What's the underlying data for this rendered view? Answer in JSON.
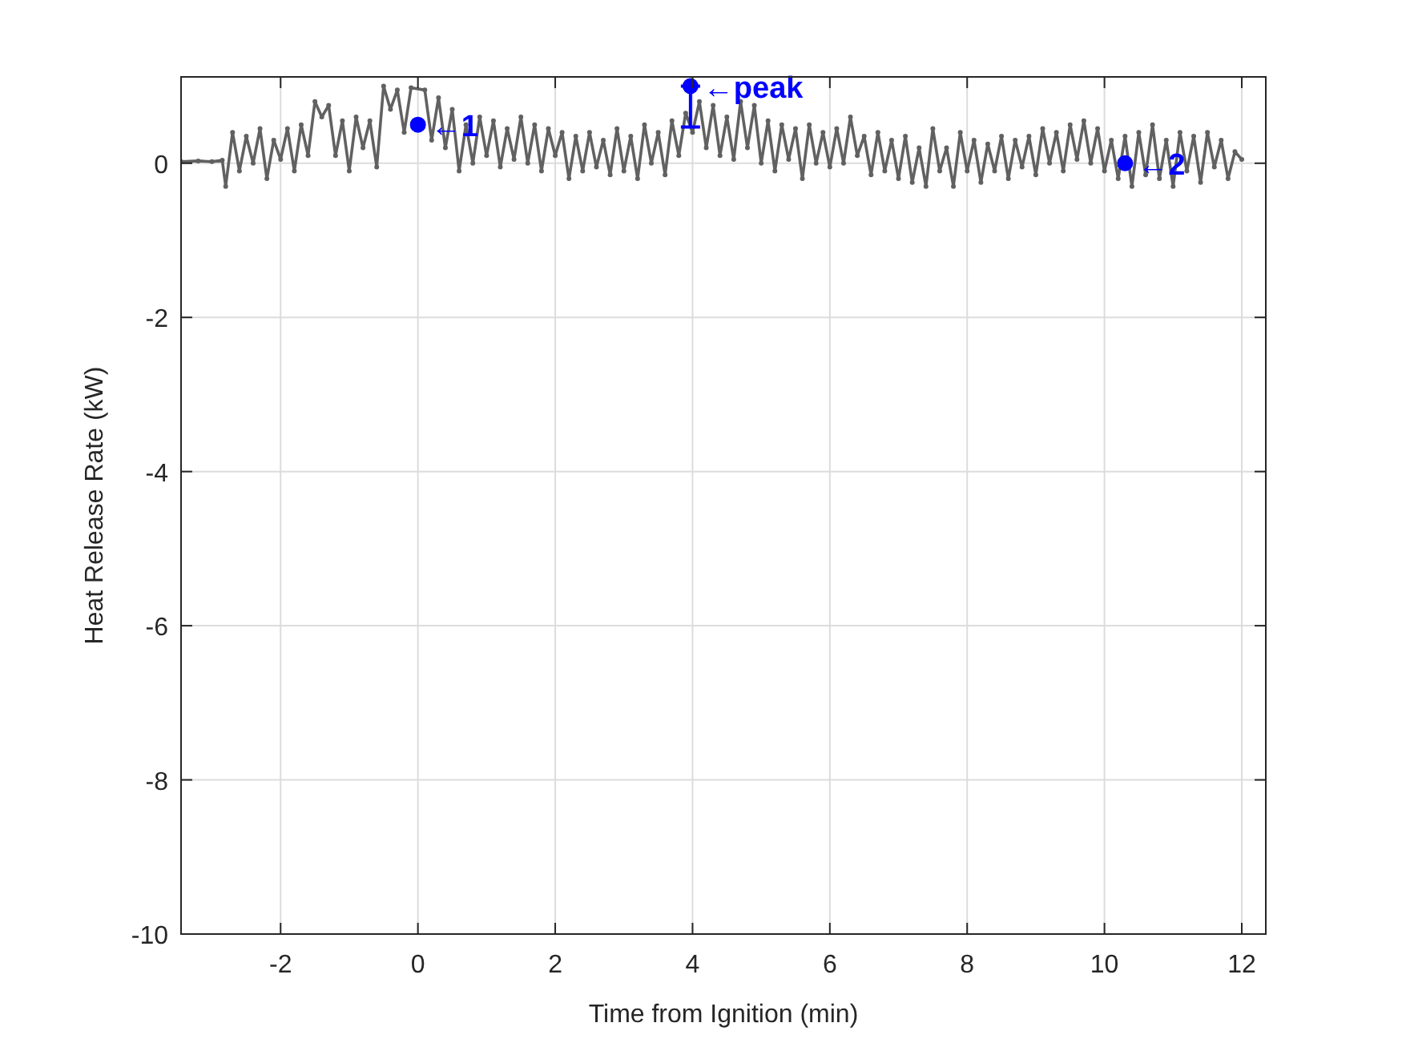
{
  "chart_data": {
    "type": "line",
    "xlabel": "Time from Ignition (min)",
    "ylabel": "Heat Release Rate (kW)",
    "xlim": [
      -3.45,
      12.35
    ],
    "ylim": [
      -10,
      1.12
    ],
    "xticks": [
      -2,
      0,
      2,
      4,
      6,
      8,
      10,
      12
    ],
    "yticks": [
      -10,
      -8,
      -6,
      -4,
      -2,
      0
    ],
    "grid": true,
    "marker": "circle",
    "line_style": "solid",
    "series": [
      {
        "color": "#616161",
        "x": [
          -3.45,
          -3.2,
          -3.0,
          -2.85,
          -2.8,
          -2.7,
          -2.6,
          -2.5,
          -2.4,
          -2.3,
          -2.2,
          -2.1,
          -2.0,
          -1.9,
          -1.8,
          -1.7,
          -1.6,
          -1.5,
          -1.4,
          -1.3,
          -1.2,
          -1.1,
          -1.0,
          -0.9,
          -0.8,
          -0.7,
          -0.6,
          -0.5,
          -0.4,
          -0.3,
          -0.2,
          -0.1,
          0.0,
          0.1,
          0.2,
          0.3,
          0.4,
          0.5,
          0.6,
          0.7,
          0.8,
          0.9,
          1.0,
          1.1,
          1.2,
          1.3,
          1.4,
          1.5,
          1.6,
          1.7,
          1.8,
          1.9,
          2.0,
          2.1,
          2.2,
          2.3,
          2.4,
          2.5,
          2.6,
          2.7,
          2.8,
          2.9,
          3.0,
          3.1,
          3.2,
          3.3,
          3.4,
          3.5,
          3.6,
          3.7,
          3.8,
          3.9,
          4.0,
          4.1,
          4.2,
          4.3,
          4.4,
          4.5,
          4.6,
          4.7,
          4.8,
          4.9,
          5.0,
          5.1,
          5.2,
          5.3,
          5.4,
          5.5,
          5.6,
          5.7,
          5.8,
          5.9,
          6.0,
          6.1,
          6.2,
          6.3,
          6.4,
          6.5,
          6.6,
          6.7,
          6.8,
          6.9,
          7.0,
          7.1,
          7.2,
          7.3,
          7.4,
          7.5,
          7.6,
          7.7,
          7.8,
          7.9,
          8.0,
          8.1,
          8.2,
          8.3,
          8.4,
          8.5,
          8.6,
          8.7,
          8.8,
          8.9,
          9.0,
          9.1,
          9.2,
          9.3,
          9.4,
          9.5,
          9.6,
          9.7,
          9.8,
          9.9,
          10.0,
          10.1,
          10.2,
          10.3,
          10.4,
          10.5,
          10.6,
          10.7,
          10.8,
          10.9,
          11.0,
          11.1,
          11.2,
          11.3,
          11.4,
          11.5,
          11.6,
          11.7,
          11.8,
          11.9,
          12.0
        ],
        "values": [
          0.02,
          0.03,
          0.02,
          0.04,
          -0.3,
          0.4,
          -0.1,
          0.35,
          0.0,
          0.45,
          -0.2,
          0.3,
          0.05,
          0.45,
          -0.1,
          0.5,
          0.1,
          0.8,
          0.6,
          0.75,
          0.1,
          0.55,
          -0.1,
          0.6,
          0.2,
          0.55,
          -0.05,
          1.0,
          0.7,
          0.95,
          0.4,
          0.98,
          null,
          0.95,
          0.3,
          0.85,
          0.2,
          0.7,
          -0.1,
          0.5,
          0.0,
          0.6,
          0.1,
          0.55,
          -0.05,
          0.45,
          0.05,
          0.6,
          0.0,
          0.5,
          -0.1,
          0.45,
          0.1,
          0.4,
          -0.2,
          0.35,
          -0.1,
          0.4,
          -0.05,
          0.3,
          -0.15,
          0.45,
          -0.1,
          0.35,
          -0.2,
          0.5,
          0.0,
          0.4,
          -0.15,
          0.55,
          0.1,
          0.65,
          0.4,
          0.8,
          0.2,
          0.75,
          0.1,
          0.6,
          0.05,
          0.8,
          0.2,
          0.75,
          0.0,
          0.55,
          -0.1,
          0.5,
          0.05,
          0.45,
          -0.2,
          0.5,
          0.0,
          0.4,
          -0.05,
          0.45,
          0.0,
          0.6,
          0.1,
          0.35,
          -0.15,
          0.4,
          -0.1,
          0.3,
          -0.2,
          0.35,
          -0.25,
          0.2,
          -0.3,
          0.45,
          -0.1,
          0.2,
          -0.3,
          0.4,
          -0.1,
          0.3,
          -0.25,
          0.25,
          -0.1,
          0.35,
          -0.2,
          0.3,
          -0.05,
          0.35,
          -0.15,
          0.45,
          0.0,
          0.4,
          -0.1,
          0.5,
          0.05,
          0.55,
          0.0,
          0.45,
          -0.1,
          0.3,
          -0.2,
          0.35,
          -0.3,
          0.4,
          -0.15,
          0.5,
          -0.2,
          0.3,
          -0.3,
          0.4,
          -0.1,
          0.35,
          -0.25,
          0.4,
          -0.05,
          0.3,
          -0.2,
          0.15,
          0.05
        ]
      },
      {
        "type": "scatter",
        "color": "#0000ff",
        "x": [
          0,
          3.97,
          10.3
        ],
        "values": [
          0.5,
          1.0,
          0.0
        ],
        "errors": [
          null,
          [
            0.47,
            1.0
          ],
          null
        ]
      }
    ],
    "annotations": [
      {
        "text": "←1",
        "x": 0,
        "y": 0.5
      },
      {
        "text": "←peak",
        "x": 3.97,
        "y": 1.0
      },
      {
        "text": "←2",
        "x": 10.3,
        "y": 0.0
      }
    ]
  }
}
